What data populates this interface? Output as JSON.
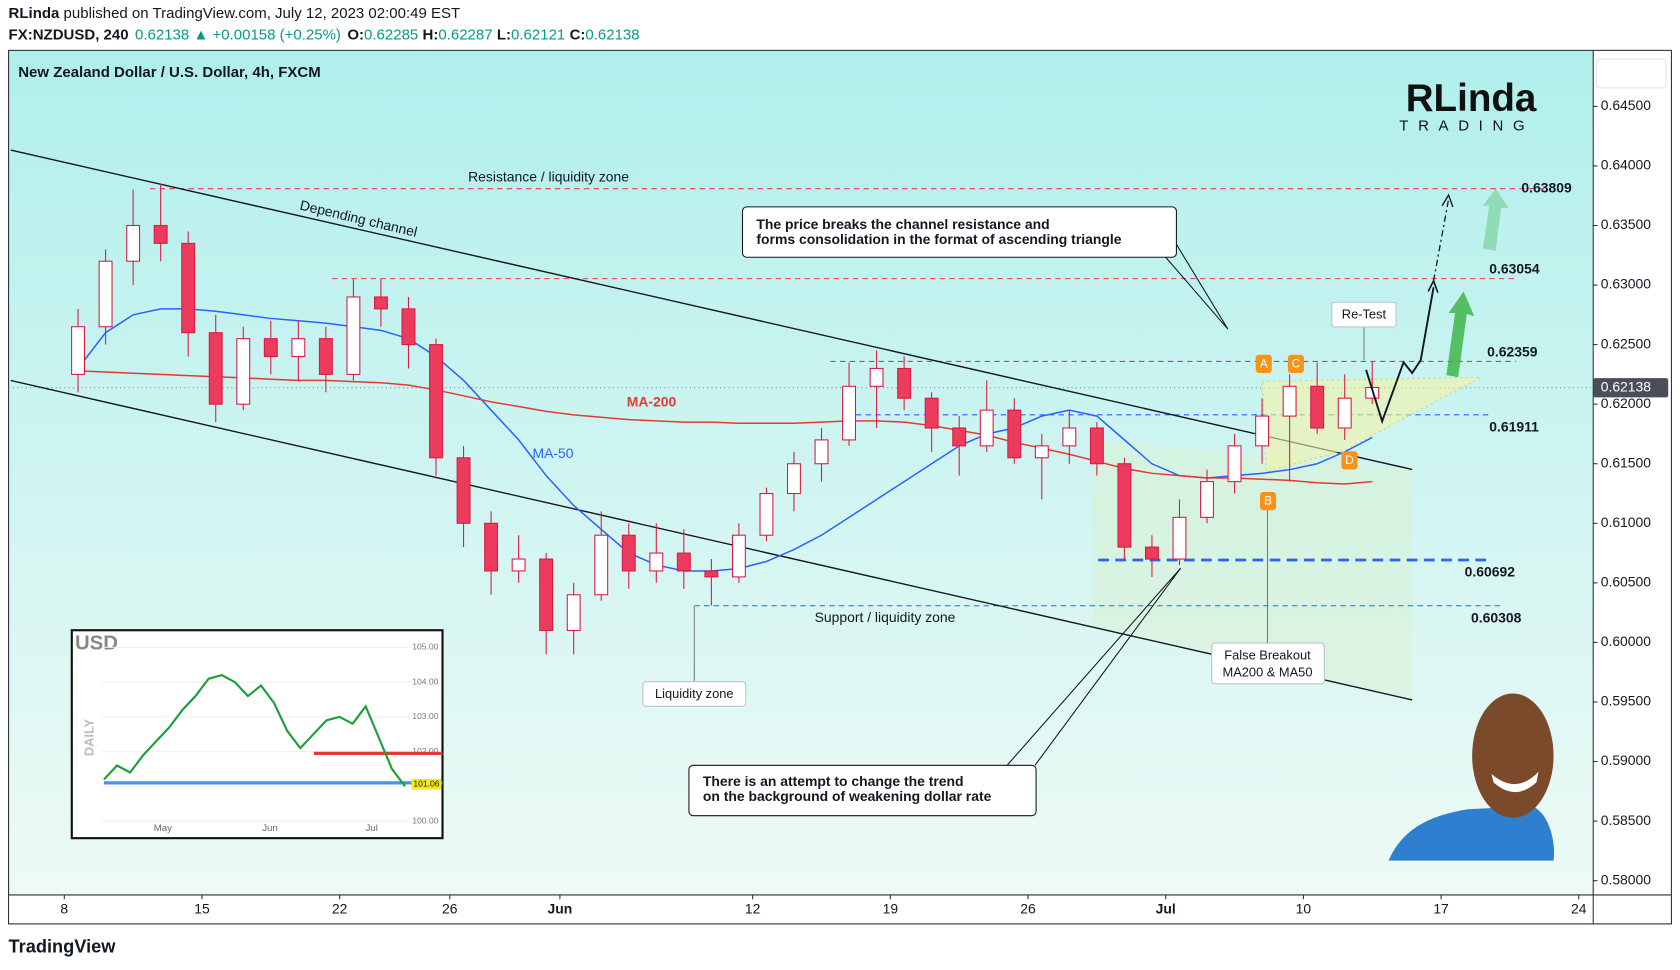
{
  "header": {
    "author": "RLinda",
    "published": " published on TradingView.com, July 12, 2023 02:00:49 EST",
    "symbol": "FX:NZDUSD, 240",
    "last": "0.62138",
    "change": "▲ +0.00158 (+0.25%)",
    "ohlc": [
      {
        "key": "O:",
        "value": "0.62285"
      },
      {
        "key": "H:",
        "value": "0.62287"
      },
      {
        "key": "L:",
        "value": "0.62121"
      },
      {
        "key": "C:",
        "value": "0.62138"
      }
    ]
  },
  "logo": {
    "name": "RLinda",
    "tagline": "TRADING"
  },
  "footer": "TradingView",
  "chart_data": {
    "type": "candlestick",
    "title": "New Zealand Dollar / U.S. Dollar, 4h, FXCM",
    "x": [
      "2023-05-08",
      "2023-05-09",
      "2023-05-10",
      "2023-05-11",
      "2023-05-12",
      "2023-05-15",
      "2023-05-16",
      "2023-05-17",
      "2023-05-18",
      "2023-05-19",
      "2023-05-22",
      "2023-05-23",
      "2023-05-24",
      "2023-05-25",
      "2023-05-26",
      "2023-05-29",
      "2023-05-30",
      "2023-05-31",
      "2023-06-01",
      "2023-06-02",
      "2023-06-05",
      "2023-06-06",
      "2023-06-07",
      "2023-06-08",
      "2023-06-09",
      "2023-06-12",
      "2023-06-13",
      "2023-06-14",
      "2023-06-15",
      "2023-06-16",
      "2023-06-19",
      "2023-06-20",
      "2023-06-21",
      "2023-06-22",
      "2023-06-23",
      "2023-06-26",
      "2023-06-27",
      "2023-06-28",
      "2023-06-29",
      "2023-06-30",
      "2023-07-03",
      "2023-07-04",
      "2023-07-05",
      "2023-07-06",
      "2023-07-07",
      "2023-07-10",
      "2023-07-11",
      "2023-07-12"
    ],
    "open": [
      0.6225,
      0.6265,
      0.632,
      0.635,
      0.6335,
      0.626,
      0.62,
      0.6255,
      0.624,
      0.6255,
      0.6225,
      0.629,
      0.628,
      0.625,
      0.6155,
      0.61,
      0.606,
      0.607,
      0.601,
      0.604,
      0.609,
      0.606,
      0.6075,
      0.606,
      0.6055,
      0.609,
      0.6125,
      0.615,
      0.617,
      0.6215,
      0.623,
      0.6205,
      0.618,
      0.6165,
      0.6195,
      0.6155,
      0.6165,
      0.618,
      0.615,
      0.608,
      0.607,
      0.6105,
      0.6135,
      0.6165,
      0.619,
      0.6215,
      0.618,
      0.6205
    ],
    "high": [
      0.628,
      0.633,
      0.638,
      0.6385,
      0.6345,
      0.6275,
      0.6265,
      0.627,
      0.627,
      0.6265,
      0.6305,
      0.6305,
      0.629,
      0.6255,
      0.6165,
      0.611,
      0.609,
      0.6075,
      0.605,
      0.611,
      0.61,
      0.61,
      0.6095,
      0.607,
      0.61,
      0.613,
      0.616,
      0.618,
      0.6235,
      0.6245,
      0.624,
      0.621,
      0.619,
      0.622,
      0.6205,
      0.6175,
      0.6195,
      0.6185,
      0.6155,
      0.609,
      0.612,
      0.6145,
      0.6175,
      0.6205,
      0.6225,
      0.6235,
      0.6225,
      0.6236
    ],
    "low": [
      0.621,
      0.625,
      0.63,
      0.632,
      0.624,
      0.6185,
      0.6195,
      0.6225,
      0.622,
      0.621,
      0.622,
      0.6265,
      0.623,
      0.614,
      0.608,
      0.604,
      0.605,
      0.599,
      0.599,
      0.6035,
      0.6045,
      0.605,
      0.6045,
      0.6031,
      0.605,
      0.6085,
      0.611,
      0.6135,
      0.6165,
      0.618,
      0.6195,
      0.616,
      0.614,
      0.616,
      0.615,
      0.612,
      0.615,
      0.614,
      0.607,
      0.6055,
      0.6065,
      0.61,
      0.6125,
      0.615,
      0.6135,
      0.6175,
      0.617,
      0.62
    ],
    "close": [
      0.6265,
      0.632,
      0.635,
      0.6335,
      0.626,
      0.62,
      0.6255,
      0.624,
      0.6255,
      0.6225,
      0.629,
      0.628,
      0.625,
      0.6155,
      0.61,
      0.606,
      0.607,
      0.601,
      0.604,
      0.609,
      0.606,
      0.6075,
      0.606,
      0.6055,
      0.609,
      0.6125,
      0.615,
      0.617,
      0.6215,
      0.623,
      0.6205,
      0.618,
      0.6165,
      0.6195,
      0.6155,
      0.6165,
      0.618,
      0.615,
      0.608,
      0.607,
      0.6105,
      0.6135,
      0.6165,
      0.619,
      0.6215,
      0.618,
      0.6205,
      0.6214
    ],
    "candle_colors": {
      "up": "#ffffff",
      "down": "#ec3b5c",
      "outline": "#d81b45"
    },
    "series": [
      {
        "name": "MA-50",
        "color": "#2962ff",
        "values": [
          0.623,
          0.626,
          0.6275,
          0.628,
          0.628,
          0.6278,
          0.6275,
          0.6272,
          0.627,
          0.6268,
          0.6265,
          0.6262,
          0.6255,
          0.624,
          0.622,
          0.6195,
          0.617,
          0.614,
          0.6115,
          0.6095,
          0.6075,
          0.6065,
          0.606,
          0.606,
          0.6062,
          0.6068,
          0.6078,
          0.609,
          0.6105,
          0.612,
          0.6135,
          0.615,
          0.6165,
          0.6175,
          0.618,
          0.619,
          0.6195,
          0.619,
          0.617,
          0.615,
          0.614,
          0.6138,
          0.614,
          0.6142,
          0.6145,
          0.615,
          0.616,
          0.6172
        ]
      },
      {
        "name": "MA-200",
        "color": "#e53935",
        "values": [
          0.6228,
          0.6227,
          0.6226,
          0.6225,
          0.6224,
          0.6223,
          0.6222,
          0.6221,
          0.622,
          0.622,
          0.6219,
          0.6218,
          0.6216,
          0.6212,
          0.6207,
          0.6202,
          0.6198,
          0.6194,
          0.6191,
          0.6189,
          0.6187,
          0.6186,
          0.6185,
          0.6185,
          0.6184,
          0.6184,
          0.6184,
          0.6185,
          0.6186,
          0.6186,
          0.6185,
          0.6182,
          0.6178,
          0.6174,
          0.6168,
          0.6163,
          0.6158,
          0.6152,
          0.6146,
          0.6142,
          0.614,
          0.6138,
          0.6138,
          0.6137,
          0.6136,
          0.6134,
          0.6133,
          0.6135
        ]
      }
    ],
    "ylim": [
      0.5788,
      0.6497
    ],
    "yticks": [
      {
        "value": 0.645,
        "label": "0.64500"
      },
      {
        "value": 0.64,
        "label": "0.64000"
      },
      {
        "value": 0.635,
        "label": "0.63500"
      },
      {
        "value": 0.63,
        "label": "0.63000"
      },
      {
        "value": 0.625,
        "label": "0.62500"
      },
      {
        "value": 0.62,
        "label": "0.62000"
      },
      {
        "value": 0.615,
        "label": "0.61500"
      },
      {
        "value": 0.61,
        "label": "0.61000"
      },
      {
        "value": 0.605,
        "label": "0.60500"
      },
      {
        "value": 0.6,
        "label": "0.60000"
      },
      {
        "value": 0.595,
        "label": "0.59500"
      },
      {
        "value": 0.59,
        "label": "0.59000"
      },
      {
        "value": 0.585,
        "label": "0.58500"
      },
      {
        "value": 0.58,
        "label": "0.58000"
      }
    ],
    "xticks": [
      {
        "value": "2023-05-08",
        "label": "8"
      },
      {
        "value": "2023-05-15",
        "label": "15"
      },
      {
        "value": "2023-05-22",
        "label": "22"
      },
      {
        "value": "2023-05-26",
        "label": "26"
      },
      {
        "value": "2023-06-01",
        "label": "Jun"
      },
      {
        "value": "2023-06-12",
        "label": "12"
      },
      {
        "value": "2023-06-19",
        "label": "19"
      },
      {
        "value": "2023-06-26",
        "label": "26"
      },
      {
        "value": "2023-07-03",
        "label": "Jul"
      },
      {
        "value": "2023-07-10",
        "label": "10"
      },
      {
        "value": "2023-07-17",
        "label": "17"
      },
      {
        "value": "2023-07-24",
        "label": "24"
      }
    ],
    "levels": [
      0.63809,
      0.63054,
      0.62359,
      0.61911,
      0.60692,
      0.60308
    ],
    "level_colors": [
      "#f23645",
      "#f23645",
      "#f23645",
      "#2962ff",
      "#2962ff",
      "#2962ff"
    ],
    "last_price": 0.62138,
    "annotations": {
      "resistance": "Resistance / liquidity zone",
      "channel": "Depending channel",
      "breakout": [
        "The price breaks the channel resistance and",
        "forms consolidation in the format of ascending triangle"
      ],
      "retest": "Re-Test",
      "support": "Support / liquidity zone",
      "liquidity": "Liquidity zone",
      "false_breakout": [
        "False Breakout",
        "MA200 & MA50"
      ],
      "trend": [
        "There is an attempt to change the trend",
        "on the background of weakening dollar rate"
      ],
      "points": [
        "A",
        "B",
        "C",
        "D"
      ]
    }
  },
  "inset": {
    "title": "USD",
    "timeframe": "DAILY",
    "ylim": [
      99.57,
      105.37
    ],
    "yticks": [
      {
        "value": 105,
        "label": "105.00"
      },
      {
        "value": 104,
        "label": "104.00"
      },
      {
        "value": 103,
        "label": "103.00"
      },
      {
        "value": 102,
        "label": "102.00"
      },
      {
        "value": 101,
        "label": "101.00"
      },
      {
        "value": 100,
        "label": "100.00"
      }
    ],
    "months": [
      "May",
      "Jun",
      "Jul"
    ],
    "values": [
      101.2,
      101.6,
      101.4,
      101.9,
      102.3,
      102.7,
      103.2,
      103.6,
      104.1,
      104.2,
      104.0,
      103.6,
      103.9,
      103.4,
      102.6,
      102.1,
      102.5,
      102.9,
      103.0,
      102.8,
      103.3,
      102.4,
      101.5,
      101.0
    ],
    "color": "#1b9e3e",
    "lines": [
      {
        "value": 101.95,
        "color": "#e53935"
      },
      {
        "value": 101.1,
        "color": "#4a90e2"
      }
    ],
    "price_label": {
      "value": 101.06,
      "label": "101.06"
    }
  }
}
